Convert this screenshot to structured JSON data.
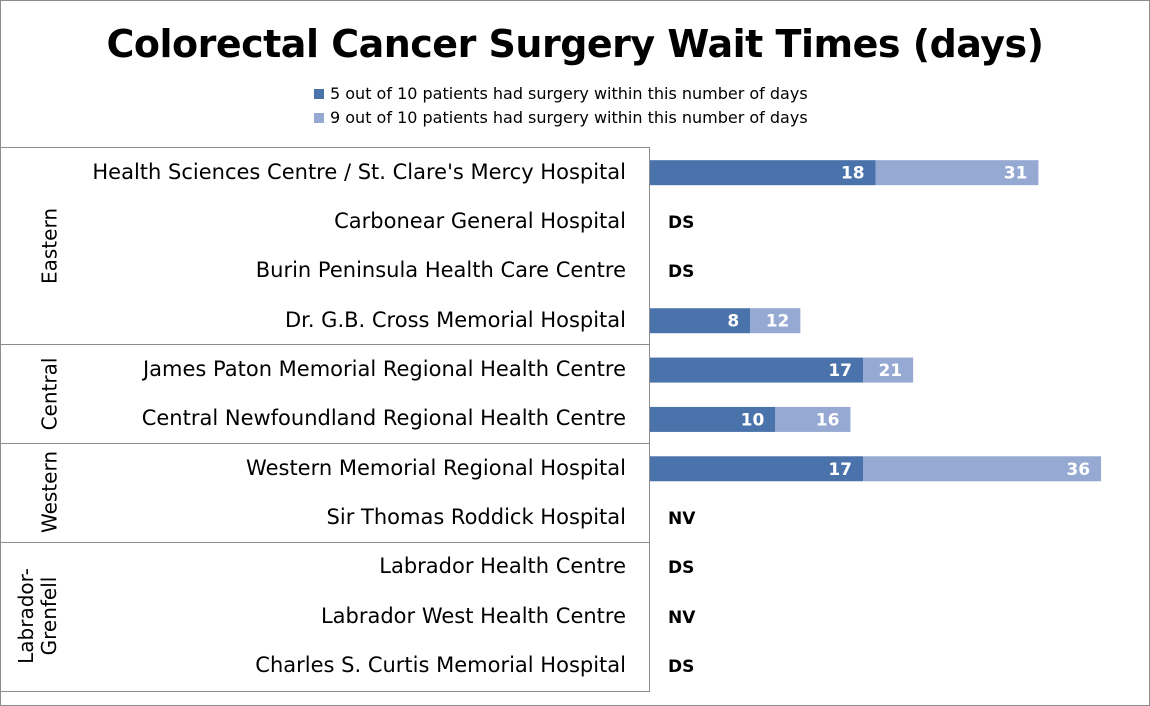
{
  "chart_data": {
    "type": "bar",
    "orientation": "horizontal",
    "stacked": true,
    "title": "Colorectal Cancer Surgery Wait Times (days)",
    "legend_position": "top",
    "grid": false,
    "series": [
      {
        "name": "5 out of 10 patients had surgery within this number of days",
        "color": "#4a72ab"
      },
      {
        "name": "9 out of 10 patients had surgery within this number of days",
        "color": "#95a9d2"
      }
    ],
    "regions": [
      {
        "label": "Eastern",
        "rows": [
          0,
          3
        ]
      },
      {
        "label": "Central",
        "rows": [
          4,
          5
        ]
      },
      {
        "label": "Western",
        "rows": [
          6,
          7
        ]
      },
      {
        "label": "Labrador-\nGrenfell",
        "rows": [
          8,
          10
        ]
      }
    ],
    "rows": [
      {
        "hospital": "Health Sciences Centre / St. Clare's Mercy Hospital",
        "p50": 18,
        "p90": 31,
        "note": ""
      },
      {
        "hospital": "Carbonear General Hospital",
        "p50": null,
        "p90": null,
        "note": "DS"
      },
      {
        "hospital": "Burin Peninsula Health Care Centre",
        "p50": null,
        "p90": null,
        "note": "DS"
      },
      {
        "hospital": "Dr. G.B. Cross Memorial Hospital",
        "p50": 8,
        "p90": 12,
        "note": ""
      },
      {
        "hospital": "James Paton Memorial Regional Health Centre",
        "p50": 17,
        "p90": 21,
        "note": ""
      },
      {
        "hospital": "Central Newfoundland Regional Health Centre",
        "p50": 10,
        "p90": 16,
        "note": ""
      },
      {
        "hospital": "Western Memorial Regional Hospital",
        "p50": 17,
        "p90": 36,
        "note": ""
      },
      {
        "hospital": "Sir Thomas Roddick Hospital",
        "p50": null,
        "p90": null,
        "note": "NV"
      },
      {
        "hospital": "Labrador Health Centre",
        "p50": null,
        "p90": null,
        "note": "DS"
      },
      {
        "hospital": "Labrador West Health Centre",
        "p50": null,
        "p90": null,
        "note": "NV"
      },
      {
        "hospital": "Charles S. Curtis Memorial Hospital",
        "p50": null,
        "p90": null,
        "note": "DS"
      }
    ]
  }
}
